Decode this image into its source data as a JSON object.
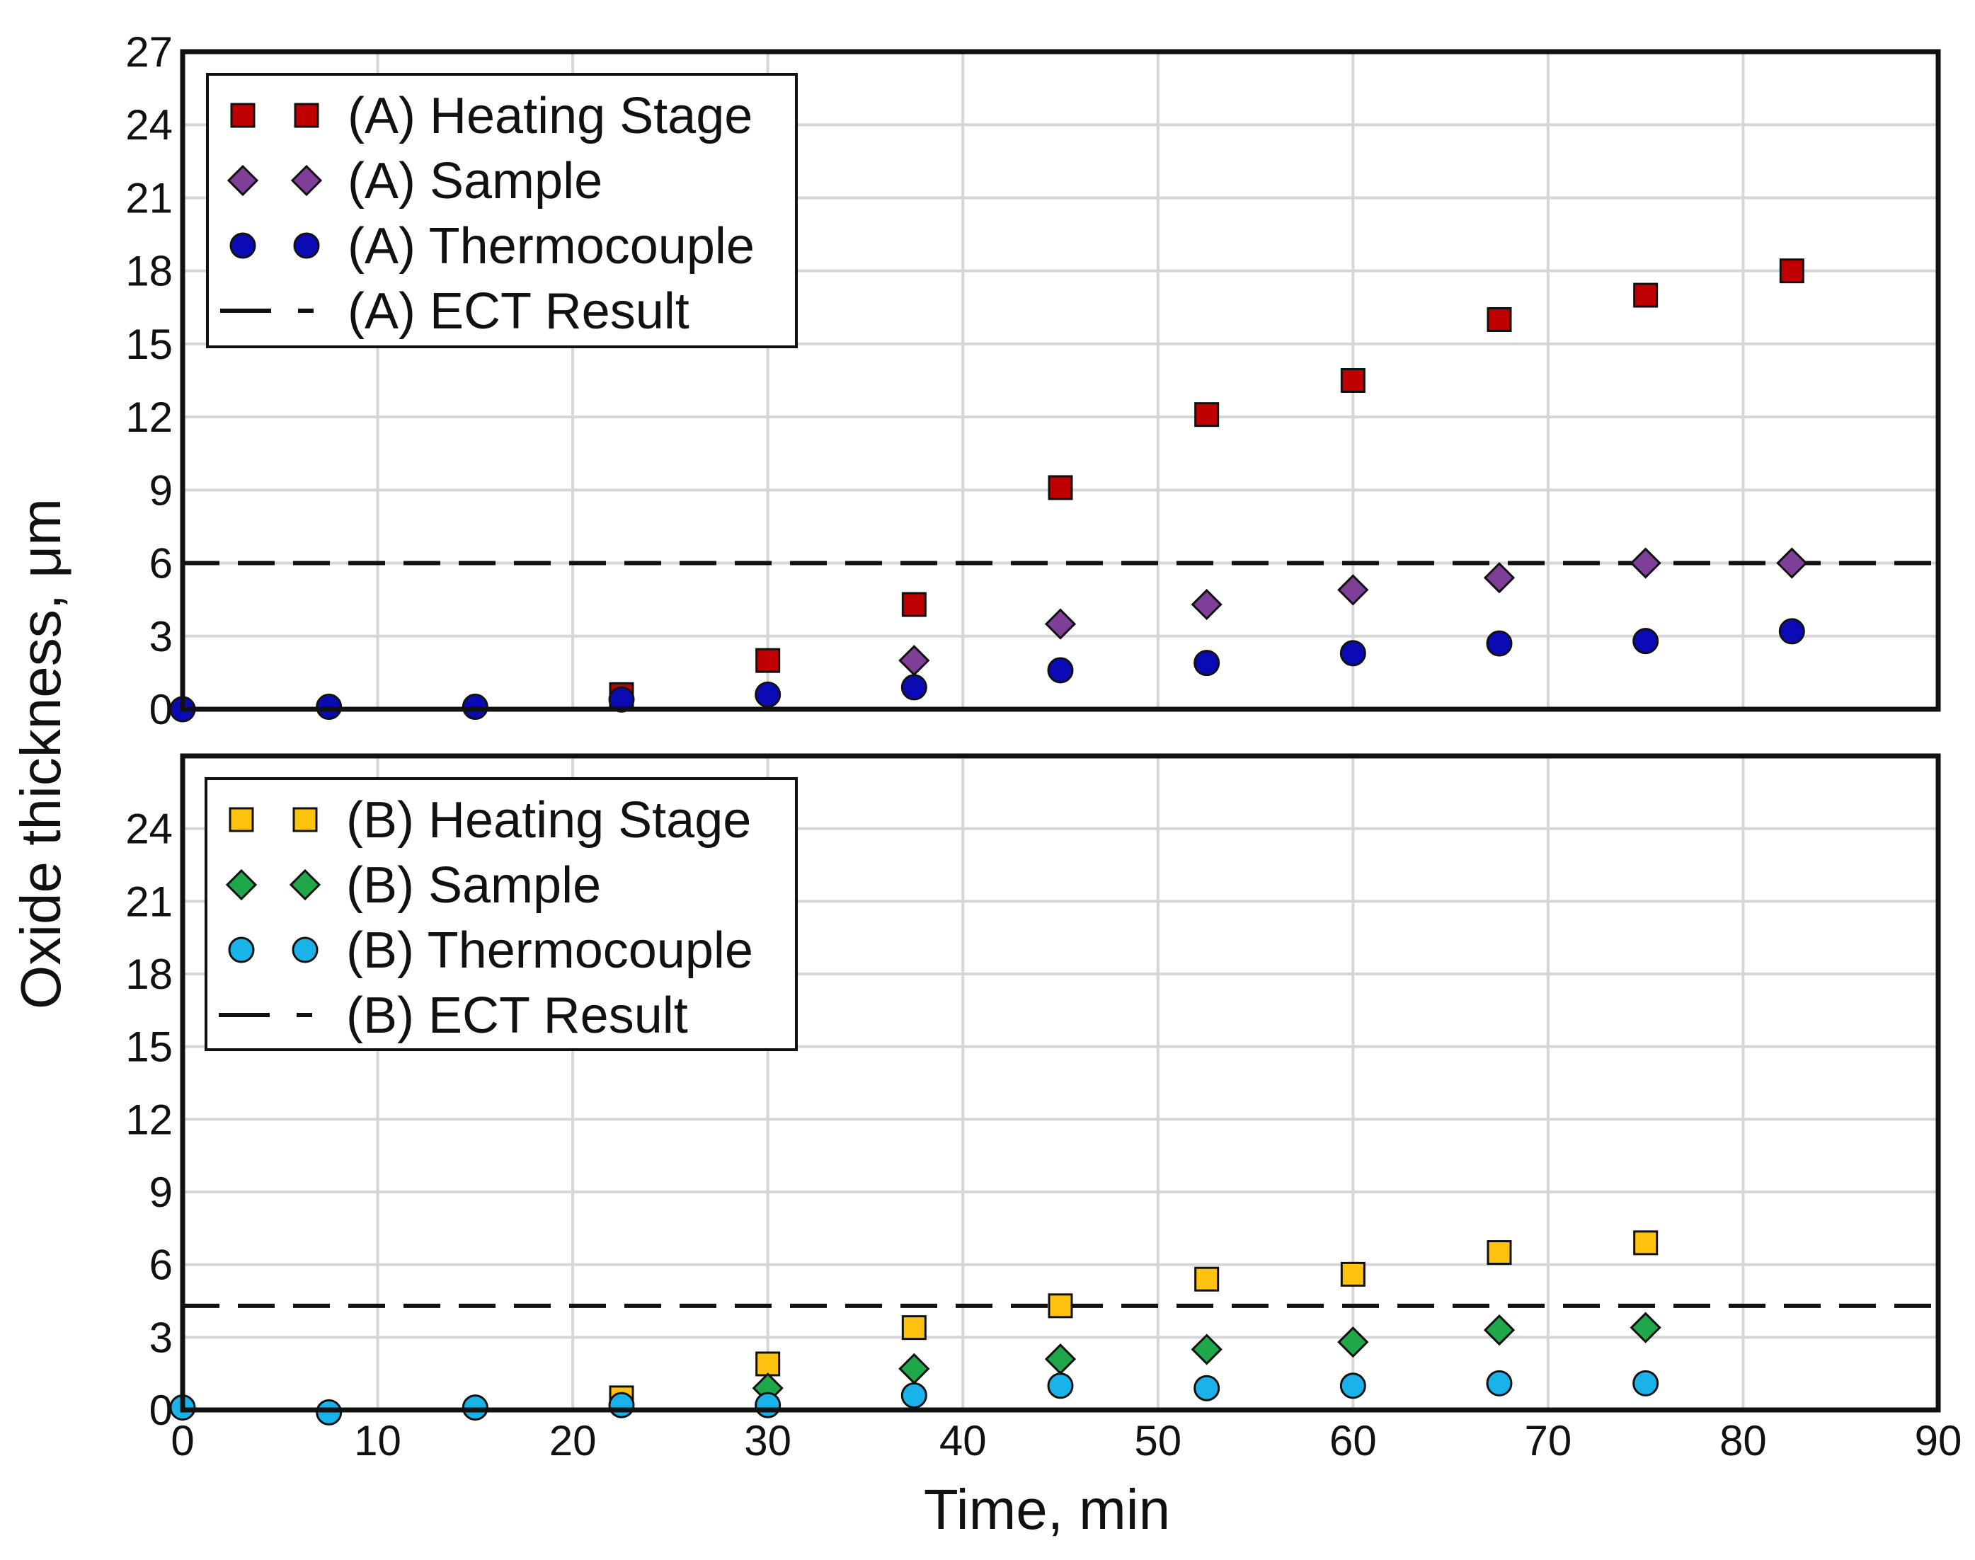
{
  "chart_data": [
    {
      "type": "scatter",
      "panel": "top",
      "xlim": [
        0,
        90
      ],
      "ylim": [
        0,
        27
      ],
      "yticks": [
        0,
        3,
        6,
        9,
        12,
        15,
        18,
        21,
        24,
        27
      ],
      "xticks": [],
      "grid": true,
      "legend_position": "top-left",
      "reference_line": {
        "name": "(A) ECT Result",
        "y": 6,
        "style": "dashed",
        "color": "#111111"
      },
      "series": [
        {
          "name": "(A) Heating Stage",
          "marker": "square",
          "color": "#c00000",
          "x": [
            22.5,
            30,
            37.5,
            45,
            52.5,
            60,
            67.5,
            75,
            82.5
          ],
          "y": [
            0.6,
            2.0,
            4.3,
            9.1,
            12.1,
            13.5,
            16.0,
            17.0,
            18.0
          ]
        },
        {
          "name": "(A) Sample",
          "marker": "diamond",
          "color": "#7f3f98",
          "x": [
            37.5,
            45,
            52.5,
            60,
            67.5,
            75,
            82.5
          ],
          "y": [
            2.0,
            3.5,
            4.3,
            4.9,
            5.4,
            6.0,
            6.0
          ]
        },
        {
          "name": "(A) Thermocouple",
          "marker": "circle",
          "color": "#0b0bb5",
          "x": [
            0,
            7.5,
            15,
            22.5,
            30,
            37.5,
            45,
            52.5,
            60,
            67.5,
            75,
            82.5
          ],
          "y": [
            0.0,
            0.1,
            0.1,
            0.4,
            0.6,
            0.9,
            1.6,
            1.9,
            2.3,
            2.7,
            2.8,
            3.2
          ]
        }
      ]
    },
    {
      "type": "scatter",
      "panel": "bottom",
      "xlim": [
        0,
        90
      ],
      "ylim": [
        0,
        27
      ],
      "yticks": [
        0,
        3,
        6,
        9,
        12,
        15,
        18,
        21,
        24
      ],
      "xticks": [
        0,
        10,
        20,
        30,
        40,
        50,
        60,
        70,
        80,
        90
      ],
      "xlabel": "Time, min",
      "grid": true,
      "legend_position": "top-left",
      "reference_line": {
        "name": "(B) ECT Result",
        "y": 4.3,
        "style": "dashed",
        "color": "#111111"
      },
      "series": [
        {
          "name": "(B) Heating Stage",
          "marker": "square",
          "color": "#ffc20e",
          "x": [
            22.5,
            30,
            37.5,
            45,
            52.5,
            60,
            67.5,
            75
          ],
          "y": [
            0.5,
            1.9,
            3.4,
            4.3,
            5.4,
            5.6,
            6.5,
            6.9
          ]
        },
        {
          "name": "(B) Sample",
          "marker": "diamond",
          "color": "#1fa84a",
          "x": [
            30,
            37.5,
            45,
            52.5,
            60,
            67.5,
            75
          ],
          "y": [
            0.9,
            1.7,
            2.1,
            2.5,
            2.8,
            3.3,
            3.4
          ]
        },
        {
          "name": "(B) Thermocouple",
          "marker": "circle",
          "color": "#19b3ea",
          "x": [
            0,
            7.5,
            15,
            22.5,
            30,
            37.5,
            45,
            52.5,
            60,
            67.5,
            75
          ],
          "y": [
            0.1,
            -0.1,
            0.1,
            0.2,
            0.2,
            0.6,
            1.0,
            0.9,
            1.0,
            1.1,
            1.1
          ]
        }
      ]
    }
  ],
  "ylabel": "Oxide thickness, μm"
}
